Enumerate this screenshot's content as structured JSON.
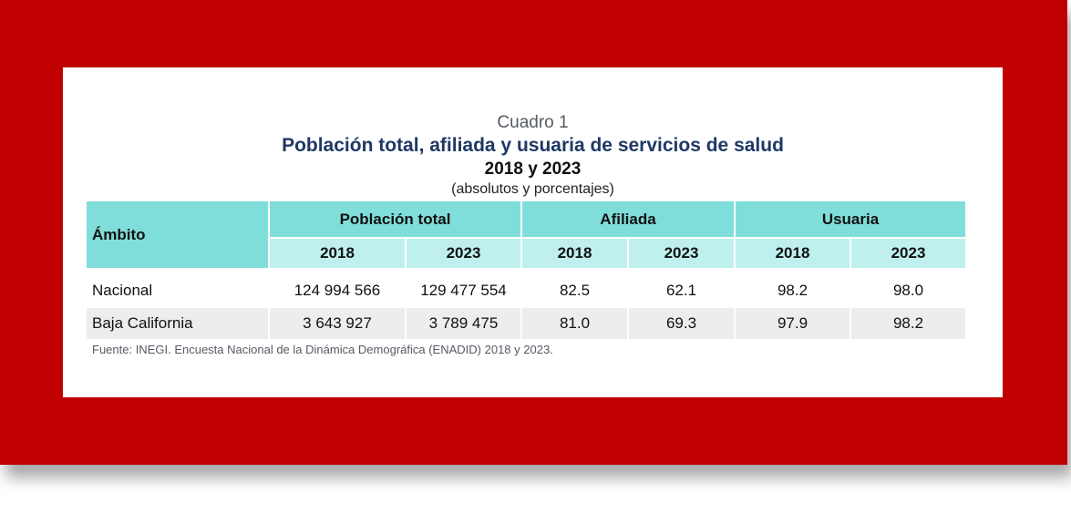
{
  "caption": {
    "number": "Cuadro 1",
    "title": "Población total, afiliada y usuaria de servicios de salud",
    "years": "2018 y 2023",
    "units": "(absolutos y porcentajes)"
  },
  "table": {
    "row_header": "Ámbito",
    "groups": [
      "Población total",
      "Afiliada",
      "Usuaria"
    ],
    "years": [
      "2018",
      "2023"
    ],
    "rows": [
      {
        "label": "Nacional",
        "values": [
          "124 994 566",
          "129 477 554",
          "82.5",
          "62.1",
          "98.2",
          "98.0"
        ]
      },
      {
        "label": "Baja California",
        "values": [
          "3 643 927",
          "3 789 475",
          "81.0",
          "69.3",
          "97.9",
          "98.2"
        ]
      }
    ]
  },
  "source": "Fuente: INEGI. Encuesta Nacional de la Dinámica Demográfica (ENADID) 2018 y 2023.",
  "colors": {
    "frame": "#c00000",
    "title": "#1f3864",
    "header_dark": "#7fded9",
    "header_light": "#bff0ee",
    "row_alt": "#ededed"
  }
}
